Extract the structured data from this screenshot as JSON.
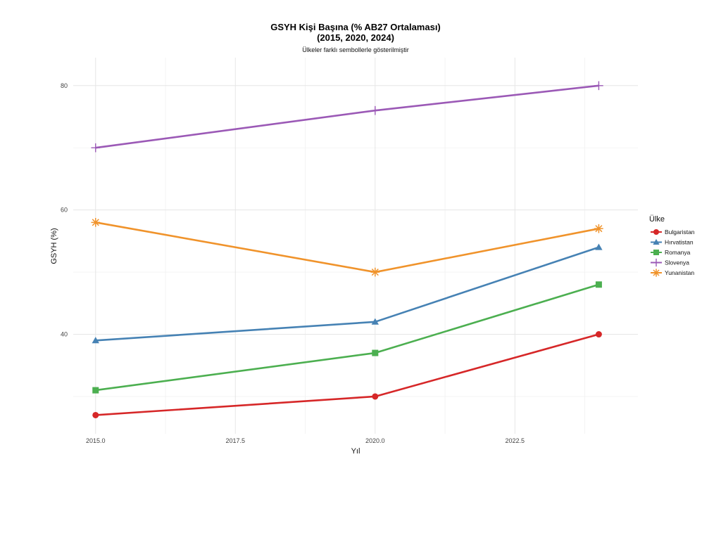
{
  "chart_data": {
    "type": "line",
    "title": "GSYH Kişi Başına (% AB27 Ortalaması)",
    "title_line2": "(2015, 2020, 2024)",
    "subtitle": "Ülkeler farklı sembollerle gösterilmiştir",
    "xlabel": "Yıl",
    "ylabel": "GSYH (%)",
    "x": [
      2015,
      2020,
      2024
    ],
    "xlim": [
      2014.6,
      2024.7
    ],
    "ylim": [
      24,
      84.5
    ],
    "x_ticks": [
      2015.0,
      2017.5,
      2020.0,
      2022.5
    ],
    "x_tick_labels": [
      "2015.0",
      "2017.5",
      "2020.0",
      "2022.5"
    ],
    "y_ticks": [
      40,
      60,
      80
    ],
    "y_tick_labels": [
      "40",
      "60",
      "80"
    ],
    "grid": true,
    "legend_title": "Ülke",
    "legend_position": "right",
    "series": [
      {
        "name": "Bulgaristan",
        "values": [
          27,
          30,
          40
        ],
        "color": "#d62728",
        "marker": "circle"
      },
      {
        "name": "Hırvatistan",
        "values": [
          39,
          42,
          54
        ],
        "color": "#4682b4",
        "marker": "triangle"
      },
      {
        "name": "Romanya",
        "values": [
          31,
          37,
          48
        ],
        "color": "#4caf50",
        "marker": "square"
      },
      {
        "name": "Slovenya",
        "values": [
          70,
          76,
          80
        ],
        "color": "#9b59b6",
        "marker": "plus"
      },
      {
        "name": "Yunanistan",
        "values": [
          58,
          50,
          57
        ],
        "color": "#f0932b",
        "marker": "asterisk"
      }
    ]
  }
}
